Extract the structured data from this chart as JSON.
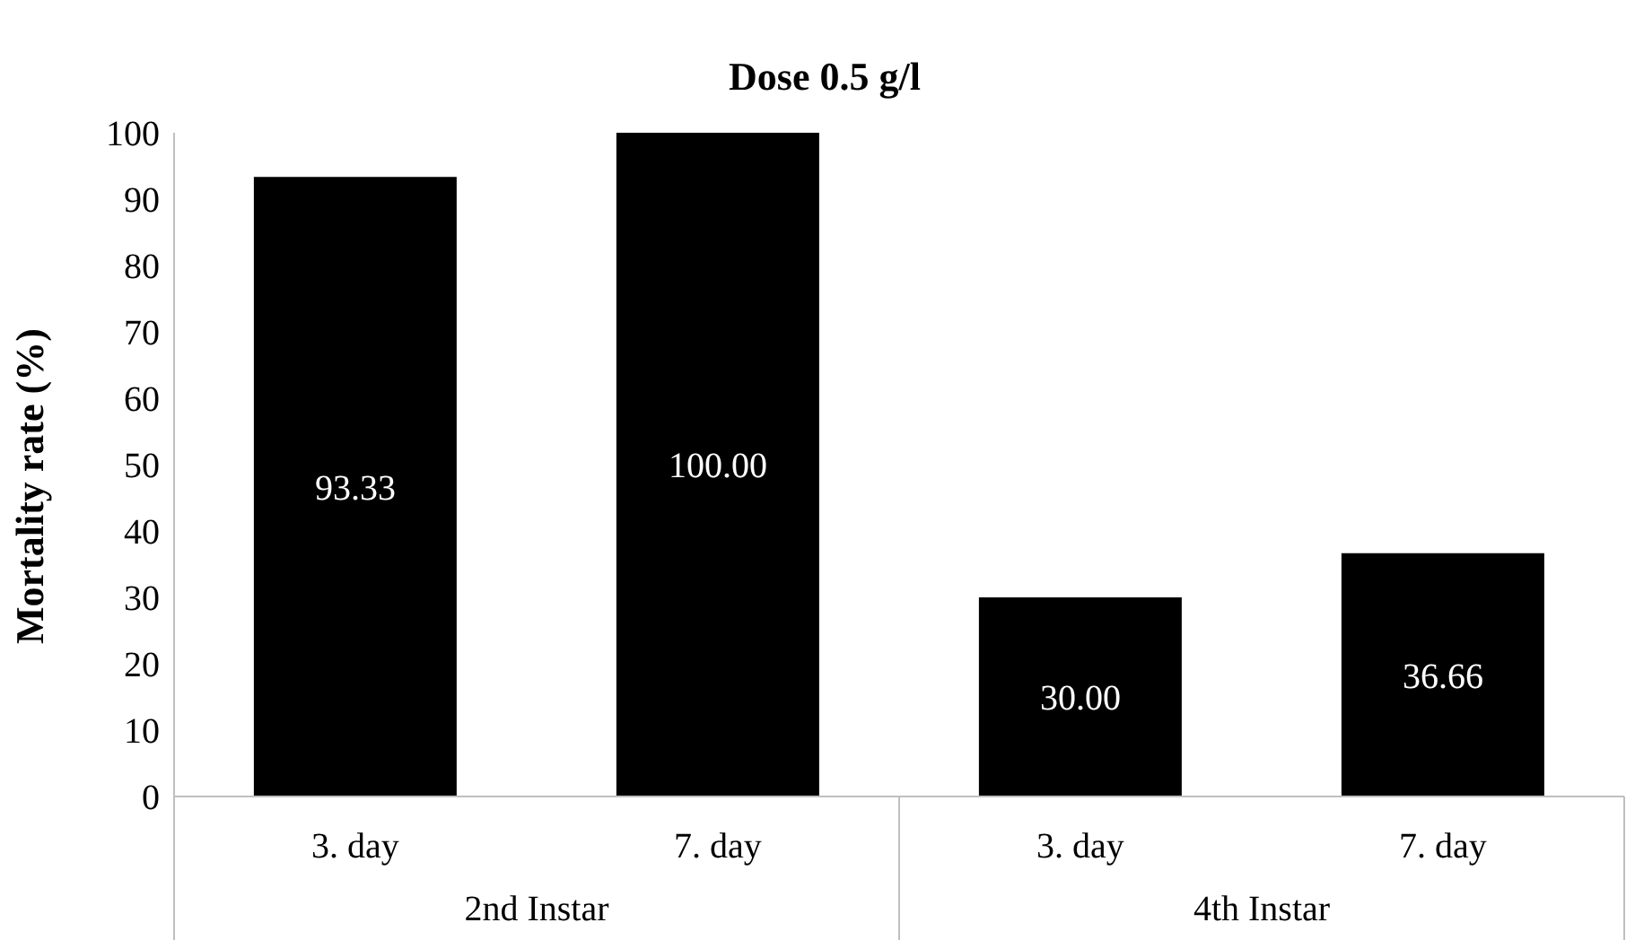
{
  "chart_data": {
    "type": "bar",
    "title": "Dose 0.5 g/l",
    "ylabel": "Mortality rate (%)",
    "categories": [
      "3. day",
      "7. day",
      "3. day",
      "7. day"
    ],
    "values": [
      93.33,
      100.0,
      30.0,
      36.66
    ],
    "value_labels": [
      "93.33",
      "100.00",
      "30.00",
      "36.66"
    ],
    "color": "#000000",
    "ylim": [
      0,
      100
    ],
    "yticks": [
      0,
      10,
      20,
      30,
      40,
      50,
      60,
      70,
      80,
      90,
      100
    ],
    "annotations": [
      "2nd Instar",
      "4th Instar"
    ],
    "grid": false,
    "legend": false
  }
}
